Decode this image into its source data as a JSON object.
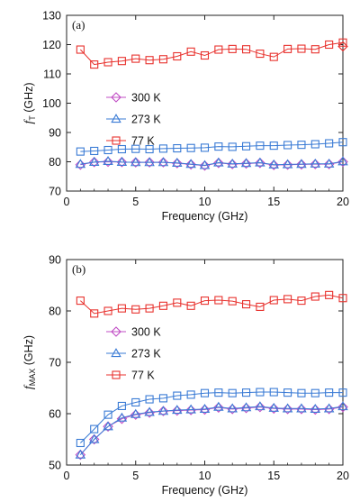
{
  "chart_data": [
    {
      "type": "line",
      "panel_label": "(a)",
      "xlabel": "Frequency (GHz)",
      "ylabel_main": "f",
      "ylabel_sub": "T",
      "ylabel_unit": " (GHz)",
      "xlim": [
        0,
        20
      ],
      "ylim": [
        70,
        130
      ],
      "xticks": [
        0,
        5,
        10,
        15,
        20
      ],
      "yticks": [
        70,
        80,
        90,
        100,
        110,
        120,
        130
      ],
      "legend_position": "center-left",
      "series": [
        {
          "name": "300 K",
          "marker": "diamond",
          "color": "#c04cc4",
          "x": [
            1,
            2,
            3,
            4,
            5,
            6,
            7,
            8,
            9,
            10,
            11,
            12,
            13,
            14,
            15,
            16,
            17,
            18,
            19,
            20
          ],
          "y": [
            79.0,
            79.9,
            80.0,
            79.9,
            79.8,
            79.8,
            79.8,
            79.5,
            79.1,
            78.7,
            79.6,
            79.2,
            79.4,
            79.6,
            78.9,
            79.0,
            79.1,
            79.2,
            79.2,
            80.0
          ]
        },
        {
          "name": "273 K",
          "marker": "triangle",
          "color": "#3a7bd5",
          "x": [
            1,
            2,
            3,
            4,
            5,
            6,
            7,
            8,
            9,
            10,
            11,
            12,
            13,
            14,
            15,
            16,
            17,
            18,
            19,
            20
          ],
          "y": [
            79.2,
            79.9,
            80.2,
            79.9,
            79.8,
            79.8,
            79.8,
            79.6,
            79.2,
            78.8,
            79.7,
            79.3,
            79.5,
            79.7,
            79.0,
            79.1,
            79.2,
            79.3,
            79.3,
            80.1
          ]
        },
        {
          "name": "77 K",
          "marker": "square",
          "color": "#e8322e",
          "x": [
            1,
            2,
            3,
            4,
            5,
            6,
            7,
            8,
            9,
            10,
            11,
            12,
            13,
            14,
            15,
            16,
            17,
            18,
            19,
            20
          ],
          "y": [
            118.3,
            113.2,
            114.0,
            114.4,
            115.2,
            114.7,
            115.0,
            116.0,
            117.6,
            116.3,
            118.3,
            118.5,
            118.4,
            116.9,
            115.8,
            118.5,
            118.6,
            118.4,
            120.0,
            120.7
          ]
        }
      ],
      "extra_series": [
        {
          "marker": "square",
          "color": "#3a7bd5",
          "x": [
            1,
            2,
            3,
            4,
            5,
            6,
            7,
            8,
            9,
            10,
            11,
            12,
            13,
            14,
            15,
            16,
            17,
            18,
            19,
            20
          ],
          "y": [
            83.5,
            83.7,
            84.0,
            84.3,
            84.4,
            84.3,
            84.5,
            84.6,
            84.7,
            84.8,
            85.2,
            85.1,
            85.3,
            85.5,
            85.5,
            85.7,
            85.8,
            86.0,
            86.3,
            86.7
          ]
        },
        {
          "marker": "diamond-last",
          "color": "#e8322e",
          "x": [
            20
          ],
          "y": [
            119.4
          ]
        }
      ]
    },
    {
      "type": "line",
      "panel_label": "(b)",
      "xlabel": "Frequency (GHz)",
      "ylabel_main": "f",
      "ylabel_sub": "MAX",
      "ylabel_unit": " (GHz)",
      "xlim": [
        0,
        20
      ],
      "ylim": [
        50,
        90
      ],
      "xticks": [
        0,
        5,
        10,
        15,
        20
      ],
      "yticks": [
        50,
        60,
        70,
        80,
        90
      ],
      "legend_position": "center-left",
      "series": [
        {
          "name": "300 K",
          "marker": "diamond",
          "color": "#c04cc4",
          "x": [
            1,
            2,
            3,
            4,
            5,
            6,
            7,
            8,
            9,
            10,
            11,
            12,
            13,
            14,
            15,
            16,
            17,
            18,
            19,
            20
          ],
          "y": [
            52.0,
            55.0,
            57.5,
            59.0,
            59.8,
            60.2,
            60.5,
            60.6,
            60.7,
            60.8,
            61.2,
            60.9,
            61.1,
            61.3,
            61.0,
            60.9,
            60.9,
            60.8,
            60.9,
            61.3
          ]
        },
        {
          "name": "273 K",
          "marker": "triangle",
          "color": "#3a7bd5",
          "x": [
            1,
            2,
            3,
            4,
            5,
            6,
            7,
            8,
            9,
            10,
            11,
            12,
            13,
            14,
            15,
            16,
            17,
            18,
            19,
            20
          ],
          "y": [
            52.0,
            55.0,
            57.5,
            59.2,
            59.9,
            60.3,
            60.5,
            60.7,
            60.8,
            60.9,
            61.3,
            61.0,
            61.2,
            61.4,
            61.1,
            61.0,
            61.0,
            60.9,
            61.0,
            61.4
          ]
        },
        {
          "name": "77 K",
          "marker": "square",
          "color": "#e8322e",
          "x": [
            1,
            2,
            3,
            4,
            5,
            6,
            7,
            8,
            9,
            10,
            11,
            12,
            13,
            14,
            15,
            16,
            17,
            18,
            19,
            20
          ],
          "y": [
            82.0,
            79.5,
            80.0,
            80.5,
            80.3,
            80.5,
            81.0,
            81.6,
            81.0,
            82.0,
            82.1,
            81.9,
            81.3,
            80.8,
            82.1,
            82.3,
            82.0,
            82.8,
            83.1,
            82.5
          ]
        }
      ],
      "extra_series": [
        {
          "marker": "square",
          "color": "#3a7bd5",
          "x": [
            1,
            2,
            3,
            4,
            5,
            6,
            7,
            8,
            9,
            10,
            11,
            12,
            13,
            14,
            15,
            16,
            17,
            18,
            19,
            20
          ],
          "y": [
            54.3,
            57.0,
            59.8,
            61.5,
            62.2,
            62.8,
            63.0,
            63.5,
            63.7,
            64.0,
            64.1,
            64.0,
            64.1,
            64.2,
            64.2,
            64.1,
            64.0,
            64.0,
            64.1,
            64.1
          ]
        }
      ]
    }
  ]
}
